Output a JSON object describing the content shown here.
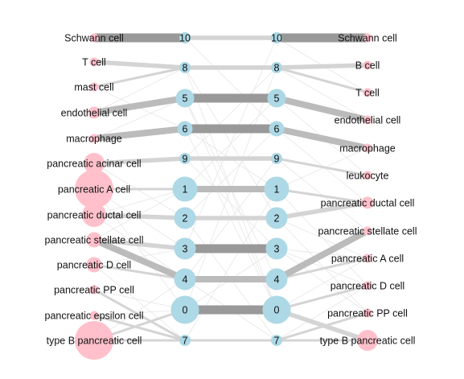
{
  "colors": {
    "cell_node": "#ffc0cb",
    "cluster_node": "#add8e6",
    "faint_edge": "#e6e6e6",
    "light_edge": "#d4d4d4",
    "mid_edge": "#bbbbbb",
    "strong_edge": "#999999",
    "text": "#111111"
  },
  "left_cells": [
    {
      "label": "Schwann cell",
      "size": 1
    },
    {
      "label": "T cell",
      "size": 1
    },
    {
      "label": "mast cell",
      "size": 1
    },
    {
      "label": "endothelial cell",
      "size": 2
    },
    {
      "label": "macrophage",
      "size": 1
    },
    {
      "label": "pancreatic acinar cell",
      "size": 5
    },
    {
      "label": "pancreatic A cell",
      "size": 10
    },
    {
      "label": "pancreatic ductal cell",
      "size": 6
    },
    {
      "label": "pancreatic stellate cell",
      "size": 3
    },
    {
      "label": "pancreatic D cell",
      "size": 3
    },
    {
      "label": "pancreatic PP cell",
      "size": 1
    },
    {
      "label": "pancreatic epsilon cell",
      "size": 1
    },
    {
      "label": "type B pancreatic cell",
      "size": 10
    }
  ],
  "left_clusters": [
    {
      "label": "10",
      "size": 1
    },
    {
      "label": "8",
      "size": 1
    },
    {
      "label": "5",
      "size": 3
    },
    {
      "label": "6",
      "size": 2
    },
    {
      "label": "9",
      "size": 1
    },
    {
      "label": "1",
      "size": 5
    },
    {
      "label": "2",
      "size": 4
    },
    {
      "label": "3",
      "size": 4
    },
    {
      "label": "4",
      "size": 4
    },
    {
      "label": "0",
      "size": 8
    },
    {
      "label": "7",
      "size": 1
    }
  ],
  "right_clusters": [
    {
      "label": "10",
      "size": 1
    },
    {
      "label": "8",
      "size": 1
    },
    {
      "label": "5",
      "size": 3
    },
    {
      "label": "6",
      "size": 2
    },
    {
      "label": "9",
      "size": 1
    },
    {
      "label": "1",
      "size": 5
    },
    {
      "label": "2",
      "size": 4
    },
    {
      "label": "3",
      "size": 4
    },
    {
      "label": "4",
      "size": 4
    },
    {
      "label": "0",
      "size": 8
    },
    {
      "label": "7",
      "size": 1
    }
  ],
  "right_cells": [
    {
      "label": "Schwann cell",
      "size": 1
    },
    {
      "label": "B cell",
      "size": 1
    },
    {
      "label": "T cell",
      "size": 1
    },
    {
      "label": "endothelial cell",
      "size": 1
    },
    {
      "label": "macrophage",
      "size": 1
    },
    {
      "label": "leukocyte",
      "size": 1
    },
    {
      "label": "pancreatic ductal cell",
      "size": 2
    },
    {
      "label": "pancreatic stellate cell",
      "size": 1
    },
    {
      "label": "pancreatic A cell",
      "size": 1
    },
    {
      "label": "pancreatic D cell",
      "size": 1
    },
    {
      "label": "pancreatic PP cell",
      "size": 1
    },
    {
      "label": "type B pancreatic cell",
      "size": 5
    }
  ],
  "edges": {
    "left_cell_to_cluster": [
      [
        0,
        0,
        4
      ],
      [
        1,
        1,
        2
      ],
      [
        2,
        1,
        1
      ],
      [
        3,
        2,
        3
      ],
      [
        4,
        3,
        3
      ],
      [
        5,
        4,
        2
      ],
      [
        6,
        5,
        1
      ],
      [
        7,
        6,
        2
      ],
      [
        8,
        7,
        2
      ],
      [
        8,
        8,
        3
      ],
      [
        9,
        8,
        1
      ],
      [
        10,
        10,
        1
      ],
      [
        11,
        10,
        1
      ],
      [
        12,
        10,
        1
      ],
      [
        12,
        9,
        1
      ],
      [
        6,
        9,
        0
      ],
      [
        7,
        5,
        0
      ],
      [
        5,
        6,
        0
      ],
      [
        9,
        10,
        0
      ],
      [
        10,
        9,
        0
      ],
      [
        3,
        1,
        0
      ],
      [
        4,
        2,
        0
      ],
      [
        8,
        5,
        0
      ],
      [
        6,
        7,
        0
      ],
      [
        11,
        9,
        0
      ],
      [
        2,
        3,
        0
      ],
      [
        7,
        8,
        0
      ],
      [
        12,
        8,
        0
      ],
      [
        9,
        7,
        0
      ]
    ],
    "cluster_to_cluster": [
      [
        0,
        0,
        2
      ],
      [
        1,
        1,
        2
      ],
      [
        2,
        2,
        4
      ],
      [
        3,
        3,
        4
      ],
      [
        4,
        4,
        2
      ],
      [
        5,
        5,
        3
      ],
      [
        6,
        6,
        2
      ],
      [
        7,
        7,
        4
      ],
      [
        8,
        8,
        3
      ],
      [
        9,
        9,
        4
      ],
      [
        10,
        10,
        1
      ],
      [
        0,
        3,
        0
      ],
      [
        1,
        6,
        0
      ],
      [
        2,
        8,
        0
      ],
      [
        3,
        9,
        0
      ],
      [
        4,
        1,
        0
      ],
      [
        5,
        2,
        0
      ],
      [
        6,
        10,
        0
      ],
      [
        7,
        0,
        0
      ],
      [
        8,
        4,
        0
      ],
      [
        9,
        7,
        0
      ],
      [
        10,
        5,
        0
      ],
      [
        2,
        9,
        0
      ],
      [
        4,
        7,
        0
      ],
      [
        6,
        3,
        0
      ],
      [
        8,
        10,
        0
      ],
      [
        1,
        9,
        0
      ],
      [
        3,
        5,
        0
      ],
      [
        9,
        1,
        0
      ]
    ],
    "cluster_to_right_cell": [
      [
        0,
        0,
        4
      ],
      [
        1,
        1,
        2
      ],
      [
        1,
        2,
        1
      ],
      [
        2,
        3,
        3
      ],
      [
        3,
        4,
        3
      ],
      [
        4,
        5,
        1
      ],
      [
        5,
        6,
        1
      ],
      [
        6,
        6,
        2
      ],
      [
        8,
        7,
        3
      ],
      [
        8,
        8,
        1
      ],
      [
        9,
        9,
        1
      ],
      [
        9,
        11,
        2
      ],
      [
        10,
        10,
        1
      ],
      [
        10,
        11,
        1
      ],
      [
        7,
        9,
        0
      ],
      [
        7,
        8,
        0
      ],
      [
        3,
        6,
        0
      ],
      [
        4,
        7,
        0
      ],
      [
        5,
        9,
        0
      ],
      [
        6,
        10,
        0
      ],
      [
        2,
        5,
        0
      ],
      [
        0,
        2,
        0
      ],
      [
        9,
        8,
        0
      ],
      [
        5,
        4,
        0
      ],
      [
        7,
        10,
        0
      ],
      [
        6,
        8,
        0
      ],
      [
        10,
        9,
        0
      ],
      [
        1,
        3,
        0
      ]
    ]
  }
}
